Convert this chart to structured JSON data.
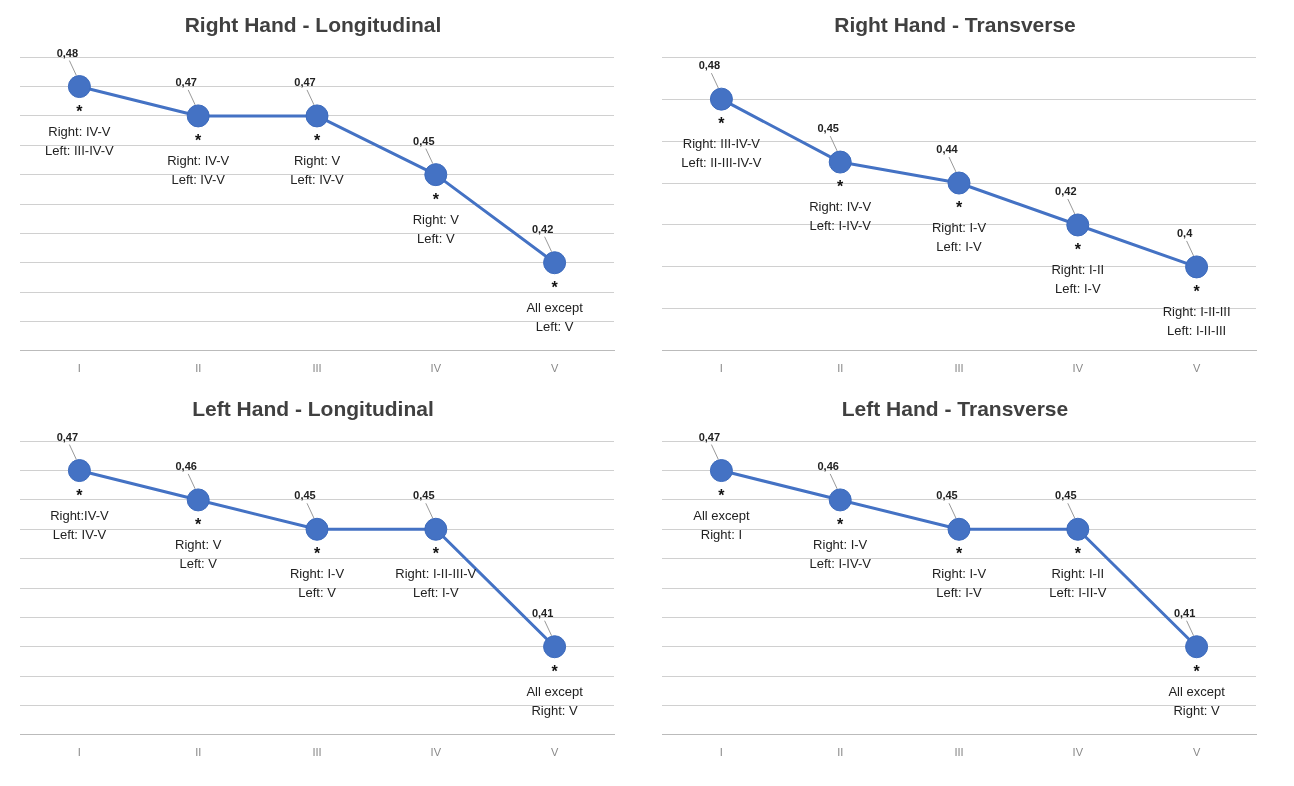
{
  "chart_data": [
    {
      "type": "line",
      "title": "Right Hand - Longitudinal",
      "categories": [
        "I",
        "II",
        "III",
        "IV",
        "V"
      ],
      "series": [
        {
          "color": "#4472c4",
          "values": [
            0.48,
            0.47,
            0.47,
            0.45,
            0.42
          ],
          "value_labels": [
            "0,48",
            "0,47",
            "0,47",
            "0,45",
            "0,42"
          ]
        }
      ],
      "ylim": [
        0.39,
        0.49
      ],
      "yticks": [
        {
          "value": 0.39,
          "label": null
        },
        {
          "value": 0.4,
          "label": null
        },
        {
          "value": 0.41,
          "label": null
        },
        {
          "value": 0.42,
          "label": null
        },
        {
          "value": 0.43,
          "label": null
        },
        {
          "value": 0.44,
          "label": null
        },
        {
          "value": 0.45,
          "label": null
        },
        {
          "value": 0.46,
          "label": null
        },
        {
          "value": 0.47,
          "label": null
        },
        {
          "value": 0.48,
          "label": null
        },
        {
          "value": 0.49,
          "label": null
        }
      ],
      "grid": "y",
      "tick_labels": "x",
      "marker": "circle",
      "line_style": "solid",
      "annotations": [
        {
          "text": "*\nRight: IV-V\nLeft: III-IV-V",
          "x": "I",
          "y": 0.48
        },
        {
          "text": "*\nRight: IV-V\nLeft: IV-V",
          "x": "II",
          "y": 0.47
        },
        {
          "text": "*\nRight: V\nLeft: IV-V",
          "x": "III",
          "y": 0.47
        },
        {
          "text": "*\nRight: V\nLeft: V",
          "x": "IV",
          "y": 0.45
        },
        {
          "text": "*\nAll except\nLeft: V",
          "x": "V",
          "y": 0.42
        }
      ]
    },
    {
      "type": "line",
      "title": "Right Hand - Transverse",
      "categories": [
        "I",
        "II",
        "III",
        "IV",
        "V"
      ],
      "series": [
        {
          "color": "#4472c4",
          "values": [
            0.48,
            0.45,
            0.44,
            0.42,
            0.4
          ],
          "value_labels": [
            "0,48",
            "0,45",
            "0,44",
            "0,42",
            "0,4"
          ]
        }
      ],
      "ylim": [
        0.36,
        0.5
      ],
      "yticks": [
        {
          "value": 0.36,
          "label": null
        },
        {
          "value": 0.38,
          "label": null
        },
        {
          "value": 0.4,
          "label": null
        },
        {
          "value": 0.42,
          "label": null
        },
        {
          "value": 0.44,
          "label": null
        },
        {
          "value": 0.46,
          "label": null
        },
        {
          "value": 0.48,
          "label": null
        },
        {
          "value": 0.5,
          "label": null
        }
      ],
      "grid": "y",
      "tick_labels": "x",
      "marker": "circle",
      "line_style": "solid",
      "annotations": [
        {
          "text": "*\nRight: III-IV-V\nLeft: II-III-IV-V",
          "x": "I",
          "y": 0.48
        },
        {
          "text": "*\nRight: IV-V\nLeft: I-IV-V",
          "x": "II",
          "y": 0.45
        },
        {
          "text": "*\nRight: I-V\nLeft: I-V",
          "x": "III",
          "y": 0.44
        },
        {
          "text": "*\nRight: I-II\nLeft: I-V",
          "x": "IV",
          "y": 0.42
        },
        {
          "text": "*\nRight: I-II-III\nLeft: I-II-III",
          "x": "V",
          "y": 0.4
        }
      ]
    },
    {
      "type": "line",
      "title": "Left Hand - Longitudinal",
      "categories": [
        "I",
        "II",
        "III",
        "IV",
        "V"
      ],
      "series": [
        {
          "color": "#4472c4",
          "values": [
            0.47,
            0.46,
            0.45,
            0.45,
            0.41
          ],
          "value_labels": [
            "0,47",
            "0,46",
            "0,45",
            "0,45",
            "0,41"
          ]
        }
      ],
      "ylim": [
        0.38,
        0.48
      ],
      "yticks": [
        {
          "value": 0.38,
          "label": null
        },
        {
          "value": 0.39,
          "label": null
        },
        {
          "value": 0.4,
          "label": null
        },
        {
          "value": 0.41,
          "label": null
        },
        {
          "value": 0.42,
          "label": null
        },
        {
          "value": 0.43,
          "label": null
        },
        {
          "value": 0.44,
          "label": null
        },
        {
          "value": 0.45,
          "label": null
        },
        {
          "value": 0.46,
          "label": null
        },
        {
          "value": 0.47,
          "label": null
        },
        {
          "value": 0.48,
          "label": null
        }
      ],
      "grid": "y",
      "tick_labels": "x",
      "marker": "circle",
      "line_style": "solid",
      "annotations": [
        {
          "text": "*\nRight:IV-V\nLeft: IV-V",
          "x": "I",
          "y": 0.47
        },
        {
          "text": "*\nRight: V\nLeft: V",
          "x": "II",
          "y": 0.46
        },
        {
          "text": "*\nRight: I-V\nLeft: V",
          "x": "III",
          "y": 0.45
        },
        {
          "text": "*\nRight: I-II-III-V\nLeft: I-V",
          "x": "IV",
          "y": 0.45
        },
        {
          "text": "*\nAll except\nRight: V",
          "x": "V",
          "y": 0.41
        }
      ]
    },
    {
      "type": "line",
      "title": "Left Hand - Transverse",
      "categories": [
        "I",
        "II",
        "III",
        "IV",
        "V"
      ],
      "series": [
        {
          "color": "#4472c4",
          "values": [
            0.47,
            0.46,
            0.45,
            0.45,
            0.41
          ],
          "value_labels": [
            "0,47",
            "0,46",
            "0,45",
            "0,45",
            "0,41"
          ]
        }
      ],
      "ylim": [
        0.38,
        0.48
      ],
      "yticks": [
        {
          "value": 0.38,
          "label": null
        },
        {
          "value": 0.39,
          "label": null
        },
        {
          "value": 0.4,
          "label": null
        },
        {
          "value": 0.41,
          "label": null
        },
        {
          "value": 0.42,
          "label": null
        },
        {
          "value": 0.43,
          "label": null
        },
        {
          "value": 0.44,
          "label": null
        },
        {
          "value": 0.45,
          "label": null
        },
        {
          "value": 0.46,
          "label": null
        },
        {
          "value": 0.47,
          "label": null
        },
        {
          "value": 0.48,
          "label": null
        }
      ],
      "grid": "y",
      "tick_labels": "x",
      "marker": "circle",
      "line_style": "solid",
      "annotations": [
        {
          "text": "*\nAll except\nRight: I",
          "x": "I",
          "y": 0.47
        },
        {
          "text": "*\nRight: I-V\nLeft: I-IV-V",
          "x": "II",
          "y": 0.46
        },
        {
          "text": "*\nRight: I-V\nLeft: I-V",
          "x": "III",
          "y": 0.45
        },
        {
          "text": "*\nRight: I-II\nLeft: I-II-V",
          "x": "IV",
          "y": 0.45
        },
        {
          "text": "*\nAll except\nRight: V",
          "x": "V",
          "y": 0.41
        }
      ]
    }
  ]
}
